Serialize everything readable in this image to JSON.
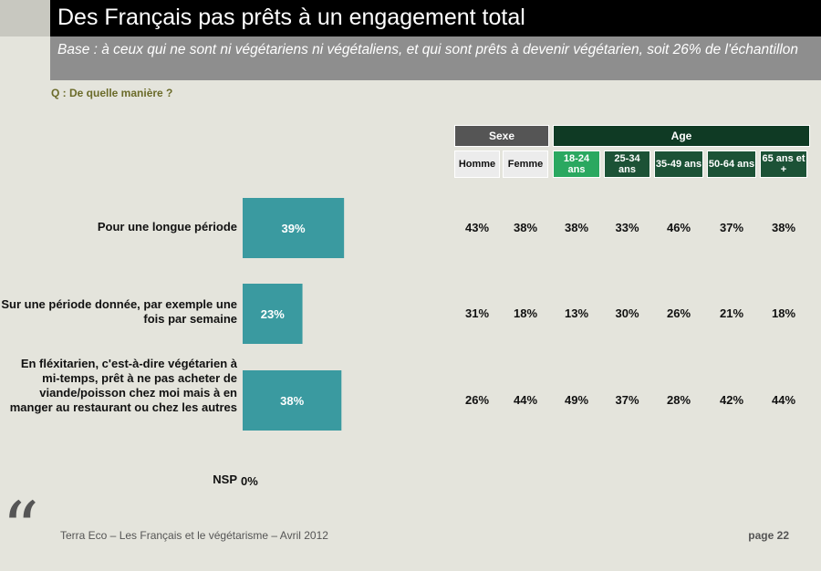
{
  "title": "Des Français pas prêts à un engagement total",
  "subtitle": "Base : à ceux qui ne sont ni végétariens ni végétaliens, et qui sont prêts à devenir végétarien, soit 26% de l'échantillon",
  "question": "Q : De quelle manière ?",
  "colors": {
    "bar": "#3a9aa0",
    "sexe_header": "#555555",
    "age_header": "#0f3a24",
    "sex_sub": "#ececec",
    "age_18_24": "#2aa860",
    "age_other": "#1c5236"
  },
  "headers": {
    "sexe": "Sexe",
    "age": "Age",
    "columns": [
      "Homme",
      "Femme",
      "18-24 ans",
      "25-34 ans",
      "35-49 ans",
      "50-64 ans",
      "65 ans et +"
    ]
  },
  "chart_data": {
    "type": "bar",
    "orientation": "horizontal",
    "xlim": [
      0,
      100
    ],
    "categories": [
      "Pour une longue période",
      "Sur une période donnée, par exemple une fois par semaine",
      "En fléxitarien, c'est-à-dire végétarien à mi-temps, prêt à ne pas acheter de viande/poisson chez moi mais à en manger au restaurant ou chez les autres",
      "NSP"
    ],
    "values": [
      39,
      23,
      38,
      0
    ],
    "value_labels": [
      "39%",
      "23%",
      "38%",
      "0%"
    ],
    "table": [
      [
        "43%",
        "38%",
        "38%",
        "33%",
        "46%",
        "37%",
        "38%"
      ],
      [
        "31%",
        "18%",
        "13%",
        "30%",
        "26%",
        "21%",
        "18%"
      ],
      [
        "26%",
        "44%",
        "49%",
        "37%",
        "28%",
        "42%",
        "44%"
      ],
      [
        "",
        "",
        "",
        "",
        "",
        "",
        ""
      ]
    ]
  },
  "footer": {
    "source": "Terra Eco – Les Français et le végétarisme – Avril 2012",
    "page": "page 22",
    "quote_icon": "quote-mark-icon"
  }
}
